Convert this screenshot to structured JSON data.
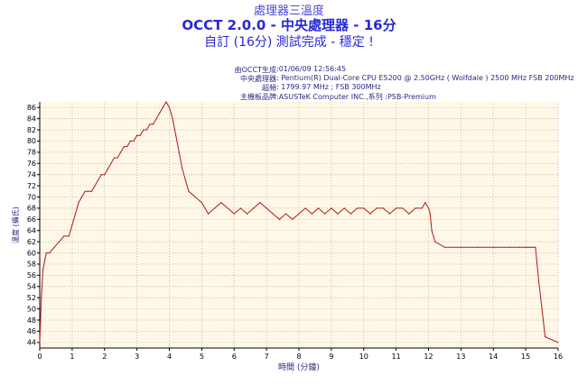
{
  "header": {
    "line1": "處理器三溫度",
    "line2": "OCCT 2.0.0 - 中央處理器 - 16分",
    "line3": "自訂 (16分) 測試完成 - 穩定 !"
  },
  "info": [
    {
      "key": "由OCCT生成",
      "value": ":01/06/09 12:56:45"
    },
    {
      "key": "中央處理器",
      "value": ": Pentium(R) Dual-Core CPU E5200 @ 2.50GHz ( Wolfdale ) 2500 MHz FSB 200MHz"
    },
    {
      "key": "超頻",
      "value": ": 1799.97 MHz ; FSB 300MHz"
    },
    {
      "key": "主機板品牌",
      "value": ":ASUSTeK Computer INC.,系列 :P5B-Premium"
    }
  ],
  "chart_data": {
    "type": "line",
    "title": "處理器三溫度",
    "xlabel": "時間 (分鐘)",
    "ylabel": "溫度 (攝氏)",
    "xlim": [
      0,
      16
    ],
    "ylim": [
      43,
      87
    ],
    "xticks": [
      0,
      1,
      2,
      3,
      4,
      5,
      6,
      7,
      8,
      9,
      10,
      11,
      12,
      13,
      14,
      15,
      16
    ],
    "yticks": [
      44,
      46,
      48,
      50,
      52,
      54,
      56,
      58,
      60,
      62,
      64,
      66,
      68,
      70,
      72,
      74,
      76,
      78,
      80,
      82,
      84,
      86
    ],
    "grid": true,
    "colors": {
      "line": "#b01818",
      "plot_bg": "#fff8e8",
      "grid": "#b4aa96",
      "text": "#2a2a80"
    },
    "series": [
      {
        "x": [
          0,
          0.05,
          0.1,
          0.2,
          0.3,
          0.45,
          0.6,
          0.75,
          0.9,
          1.0,
          1.1,
          1.2,
          1.3,
          1.4,
          1.5,
          1.6,
          1.7,
          1.8,
          1.9,
          2.0,
          2.1,
          2.2,
          2.3,
          2.4,
          2.5,
          2.6,
          2.7,
          2.8,
          2.9,
          3.0,
          3.1,
          3.2,
          3.3,
          3.4,
          3.5,
          3.6,
          3.7,
          3.8,
          3.9,
          4.0,
          4.1,
          4.2,
          4.3,
          4.4,
          4.5,
          4.6,
          4.8,
          5.0,
          5.2,
          5.4,
          5.6,
          5.8,
          6.0,
          6.2,
          6.4,
          6.6,
          6.8,
          7.0,
          7.2,
          7.4,
          7.6,
          7.8,
          8.0,
          8.2,
          8.4,
          8.6,
          8.8,
          9.0,
          9.2,
          9.4,
          9.6,
          9.8,
          10.0,
          10.2,
          10.4,
          10.6,
          10.8,
          11.0,
          11.2,
          11.4,
          11.6,
          11.8,
          11.9,
          12.0,
          12.05,
          12.1,
          12.2,
          12.5,
          13.0,
          13.5,
          14.0,
          14.5,
          14.8,
          15.0,
          15.05,
          15.1,
          15.2,
          15.3,
          15.4,
          15.5,
          15.6,
          16.0
        ],
        "values": [
          44,
          52,
          57,
          60,
          60,
          61,
          62,
          63,
          63,
          65,
          67,
          69,
          70,
          71,
          71,
          71,
          72,
          73,
          74,
          74,
          75,
          76,
          77,
          77,
          78,
          79,
          79,
          80,
          80,
          81,
          81,
          82,
          82,
          83,
          83,
          84,
          85,
          86,
          87,
          86,
          84,
          81,
          78,
          75,
          73,
          71,
          70,
          69,
          67,
          68,
          69,
          68,
          67,
          68,
          67,
          68,
          69,
          68,
          67,
          66,
          67,
          66,
          67,
          68,
          67,
          68,
          67,
          68,
          67,
          68,
          67,
          68,
          68,
          67,
          68,
          68,
          67,
          68,
          68,
          67,
          68,
          68,
          69,
          68,
          67,
          64,
          62,
          61,
          61,
          61,
          61,
          61,
          61,
          61,
          61,
          61,
          61,
          61,
          55,
          50,
          45,
          44
        ]
      }
    ]
  }
}
